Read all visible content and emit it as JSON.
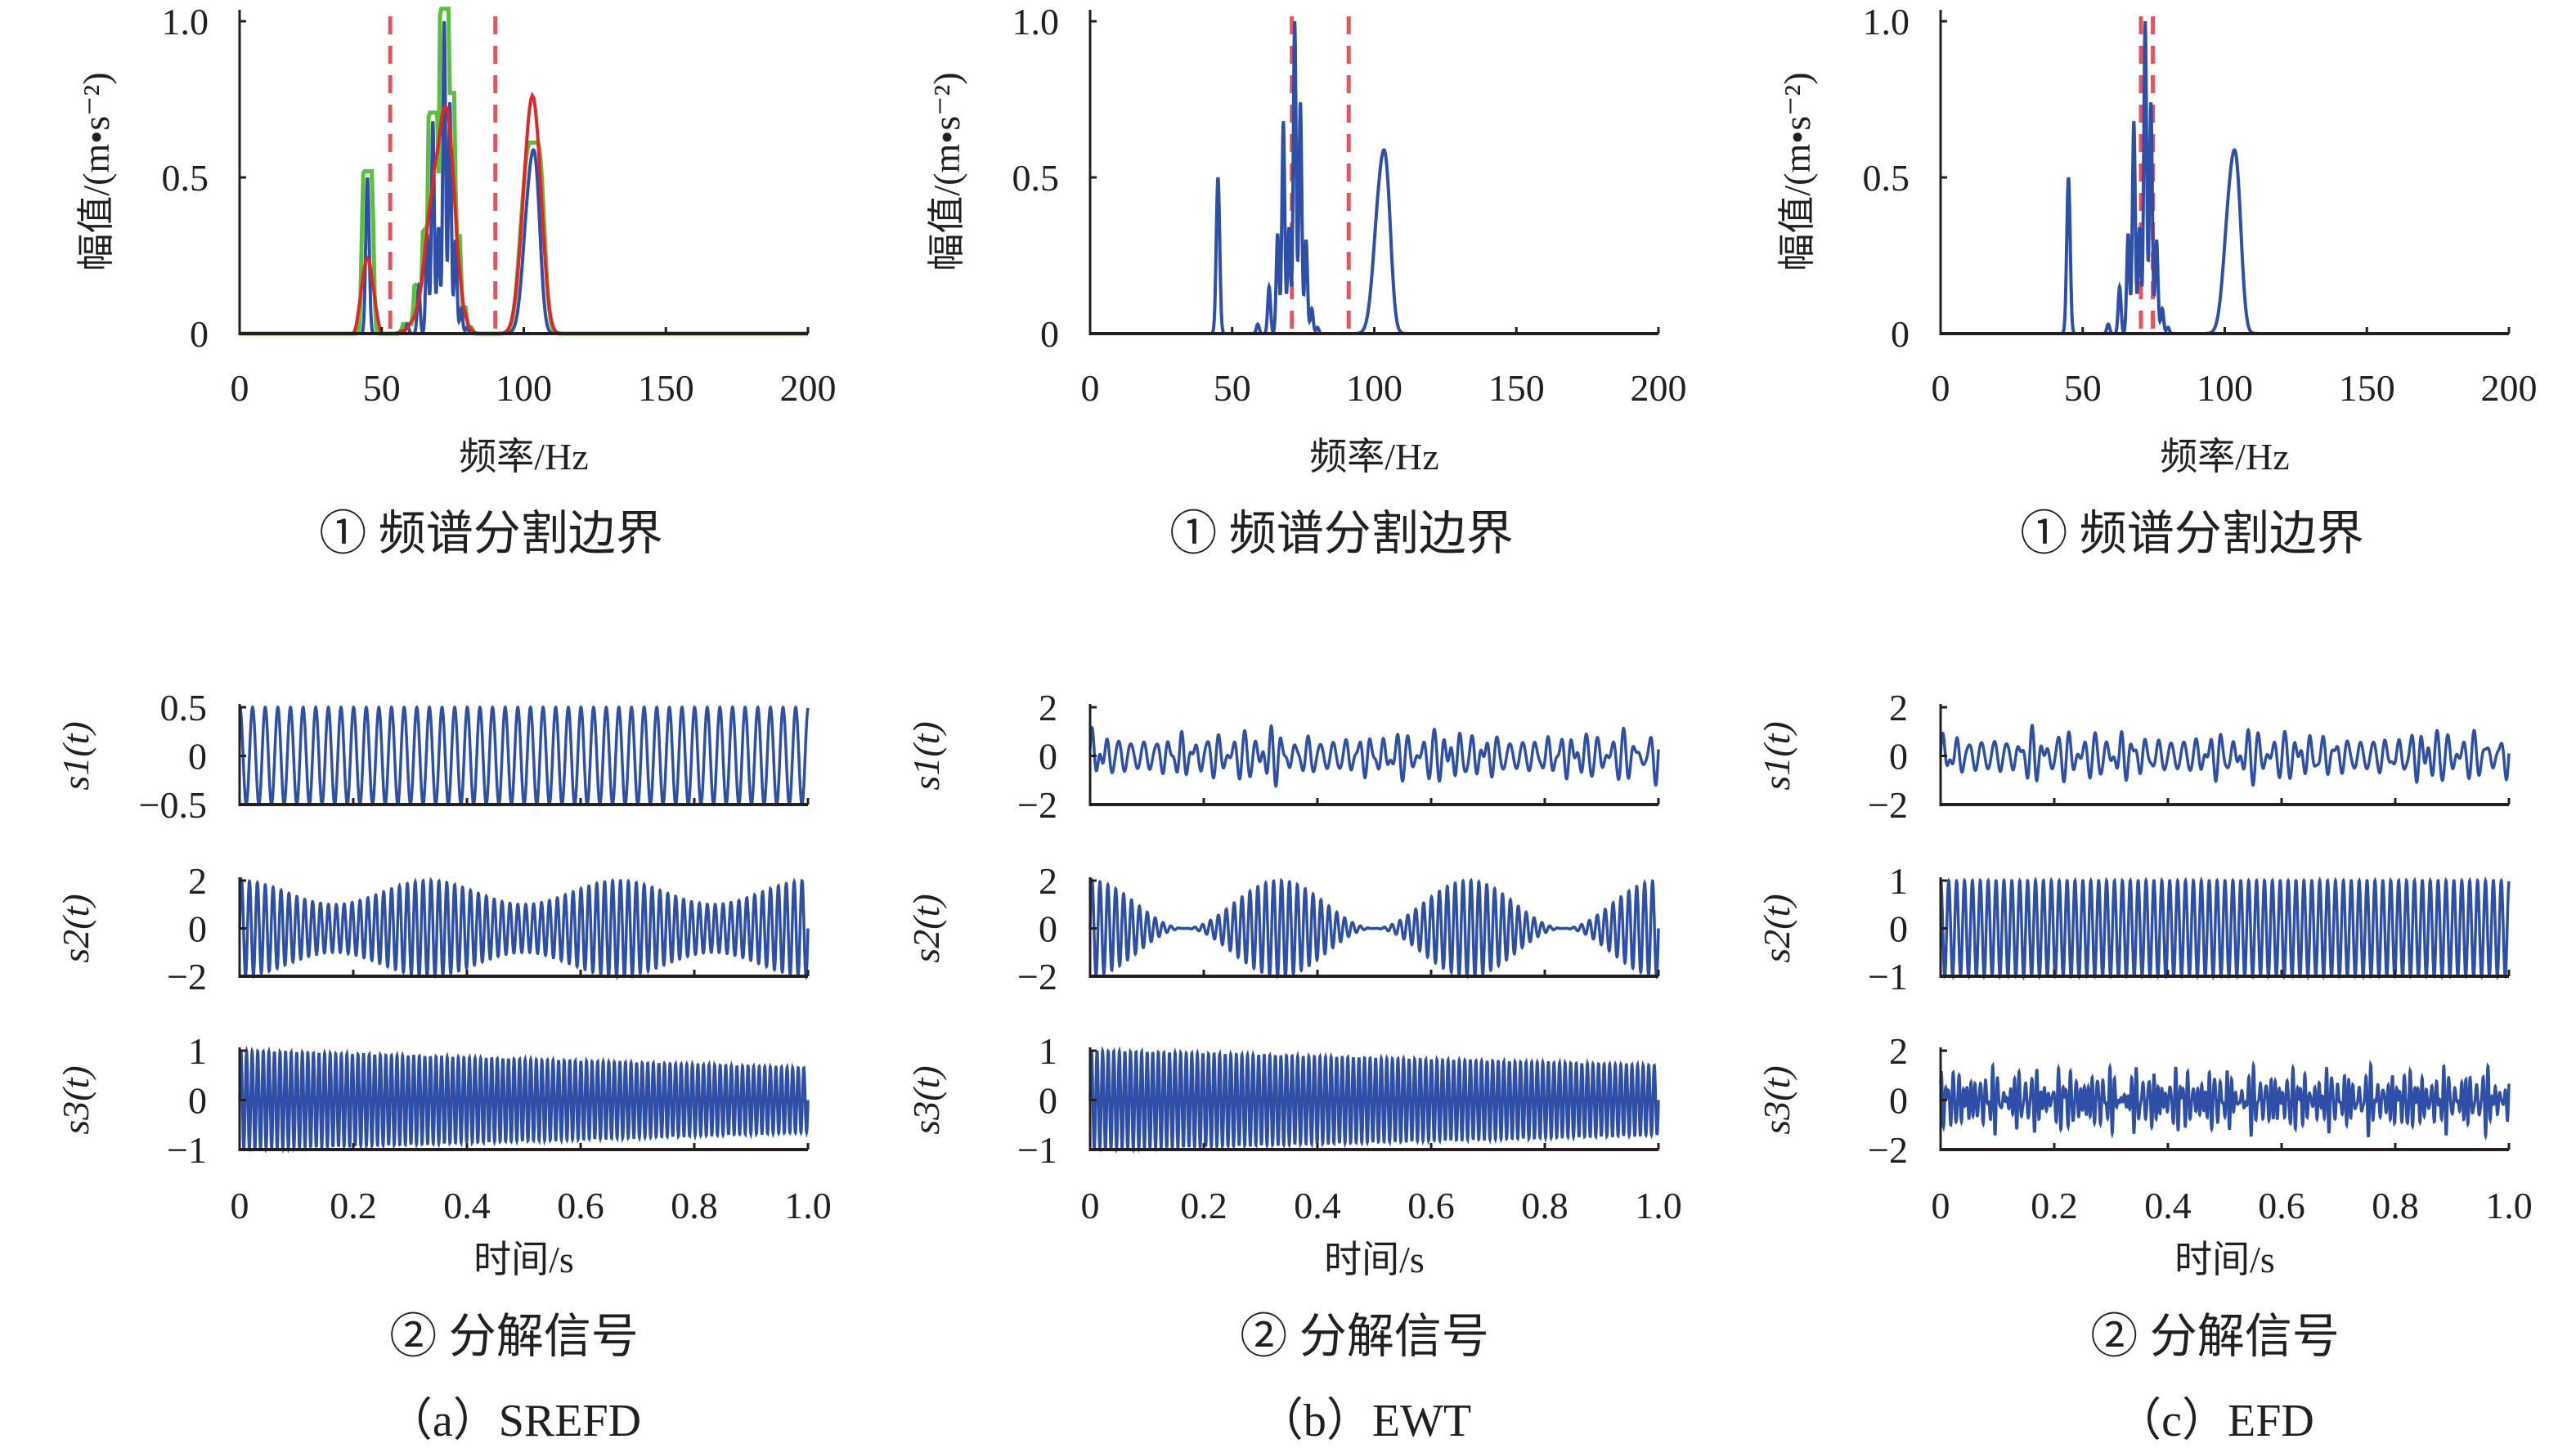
{
  "chart_data": {
    "type": "line",
    "colors": {
      "signal": "#2e4fa5",
      "boundary": "#e8525b",
      "envelope_green": "#5cbf3a",
      "envelope_red": "#e02626",
      "axis": "#231f20"
    },
    "spectrum_peaks": [
      {
        "f": 45,
        "a": 0.5,
        "w": 0.6
      },
      {
        "f": 59,
        "a": 0.03,
        "w": 0.5
      },
      {
        "f": 63,
        "a": 0.15,
        "w": 0.5
      },
      {
        "f": 66,
        "a": 0.32,
        "w": 0.5
      },
      {
        "f": 68,
        "a": 0.68,
        "w": 0.5
      },
      {
        "f": 70,
        "a": 0.34,
        "w": 0.5
      },
      {
        "f": 72,
        "a": 1.0,
        "w": 0.5
      },
      {
        "f": 74,
        "a": 0.74,
        "w": 0.5
      },
      {
        "f": 76,
        "a": 0.3,
        "w": 0.5
      },
      {
        "f": 78,
        "a": 0.08,
        "w": 0.5
      },
      {
        "f": 80,
        "a": 0.02,
        "w": 0.5
      },
      {
        "f": 102,
        "a": 0.43,
        "w": 2.2
      },
      {
        "f": 104.5,
        "a": 0.3,
        "w": 1.6
      }
    ],
    "panels": [
      {
        "caption": "（a）SREFD",
        "spectrum": {
          "subtitle": "① 频谱分割边界",
          "xlabel": "频率/Hz",
          "ylabel": "幅值/(m•s⁻²)",
          "boundaries": [
            53,
            90
          ],
          "envelopes": true
        },
        "signals": {
          "subtitle": "② 分解信号",
          "xlabel": "时间/s",
          "rows": [
            {
              "label": "s1(t)",
              "ylim": [
                -0.5,
                0.5
              ],
              "yticks": [
                "0.5",
                "0",
                "−0.5"
              ],
              "ytickvals": [
                0.5,
                0,
                -0.5
              ],
              "model": "tone",
              "freq": 45,
              "amp": 0.5
            },
            {
              "label": "s2(t)",
              "ylim": [
                -2,
                2
              ],
              "yticks": [
                "2",
                "0",
                "−2"
              ],
              "ytickvals": [
                2,
                0,
                -2
              ],
              "model": "am",
              "freq": 72,
              "amp": 1.5,
              "mod": 0.5
            },
            {
              "label": "s3(t)",
              "ylim": [
                -1,
                1
              ],
              "yticks": [
                "1",
                "0",
                "−1"
              ],
              "ytickvals": [
                1,
                0,
                -1
              ],
              "model": "decay",
              "freq": 102,
              "amp": 1.0,
              "end_amp": 0.65
            }
          ]
        }
      },
      {
        "caption": "（b）EWT",
        "spectrum": {
          "subtitle": "① 频谱分割边界",
          "xlabel": "频率/Hz",
          "ylabel": "幅值/(m•s⁻²)",
          "boundaries": [
            71,
            91
          ],
          "envelopes": false
        },
        "signals": {
          "subtitle": "② 分解信号",
          "xlabel": "时间/s",
          "rows": [
            {
              "label": "s1(t)",
              "ylim": [
                -2,
                2
              ],
              "yticks": [
                "2",
                "0",
                "−2"
              ],
              "ytickvals": [
                2,
                0,
                -2
              ],
              "model": "mix",
              "freq": 45,
              "amp": 0.9
            },
            {
              "label": "s2(t)",
              "ylim": [
                -2,
                2
              ],
              "yticks": [
                "2",
                "0",
                "−2"
              ],
              "ytickvals": [
                2,
                0,
                -2
              ],
              "model": "am",
              "freq": 72,
              "amp": 1.0,
              "mod": 1.0
            },
            {
              "label": "s3(t)",
              "ylim": [
                -1,
                1
              ],
              "yticks": [
                "1",
                "0",
                "−1"
              ],
              "ytickvals": [
                1,
                0,
                -1
              ],
              "model": "decay",
              "freq": 102,
              "amp": 1.0,
              "end_amp": 0.7
            }
          ]
        }
      },
      {
        "caption": "（c）EFD",
        "spectrum": {
          "subtitle": "① 频谱分割边界",
          "xlabel": "频率/Hz",
          "ylabel": "幅值/(m•s⁻²)",
          "boundaries": [
            70.5,
            74.7
          ],
          "envelopes": false
        },
        "signals": {
          "subtitle": "② 分解信号",
          "xlabel": "时间/s",
          "rows": [
            {
              "label": "s1(t)",
              "ylim": [
                -2,
                2
              ],
              "yticks": [
                "2",
                "0",
                "−2"
              ],
              "ytickvals": [
                2,
                0,
                -2
              ],
              "model": "mix",
              "freq": 45,
              "amp": 0.9
            },
            {
              "label": "s2(t)",
              "ylim": [
                -1,
                1
              ],
              "yticks": [
                "1",
                "0",
                "−1"
              ],
              "ytickvals": [
                1,
                0,
                -1
              ],
              "model": "tone",
              "freq": 72,
              "amp": 1.0
            },
            {
              "label": "s3(t)",
              "ylim": [
                -2,
                2
              ],
              "yticks": [
                "2",
                "0",
                "−2"
              ],
              "ytickvals": [
                2,
                0,
                -2
              ],
              "model": "noisy",
              "freq": 102,
              "amp": 0.8
            }
          ]
        }
      }
    ],
    "spectrum_axes": {
      "xlim": [
        0,
        200
      ],
      "ylim": [
        0,
        1.0
      ],
      "xticks": [
        "0",
        "50",
        "100",
        "150",
        "200"
      ],
      "xtickvals": [
        0,
        50,
        100,
        150,
        200
      ],
      "yticks": [
        "1.0",
        "0.5",
        "0"
      ],
      "ytickvals": [
        1,
        0.5,
        0
      ]
    },
    "signal_axes": {
      "xlim": [
        0,
        1.0
      ],
      "xticks": [
        "0",
        "0.2",
        "0.4",
        "0.6",
        "0.8",
        "1.0"
      ],
      "xtickvals": [
        0,
        0.2,
        0.4,
        0.6,
        0.8,
        1.0
      ]
    }
  }
}
